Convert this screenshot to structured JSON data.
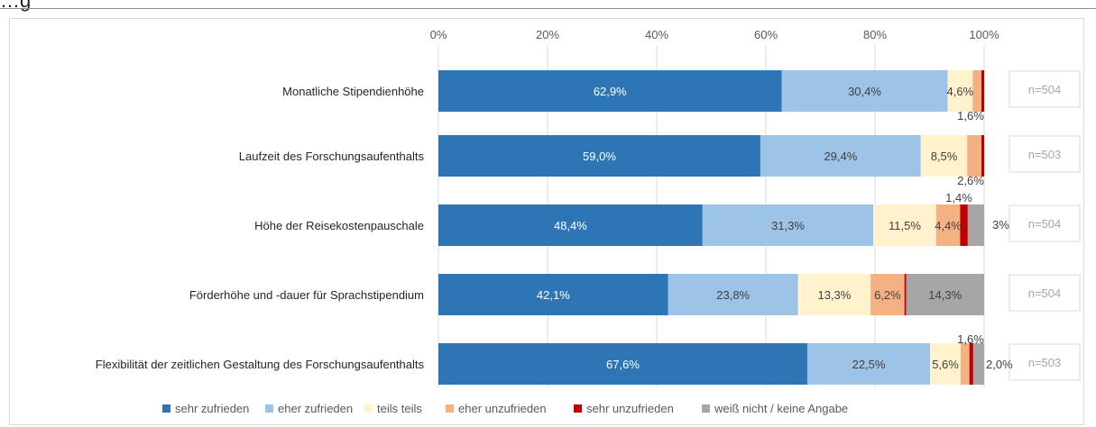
{
  "page_title": "…g",
  "chart_data": {
    "type": "bar",
    "orientation": "horizontal",
    "stacked": true,
    "title": "",
    "xlabel": "",
    "ylabel": "",
    "xlim": [
      0,
      100
    ],
    "x_ticks": [
      "0%",
      "20%",
      "40%",
      "60%",
      "80%",
      "100%"
    ],
    "x_tick_values": [
      0,
      20,
      40,
      60,
      80,
      100
    ],
    "grid": true,
    "legend_position": "bottom",
    "categories": [
      "Monatliche Stipendienhöhe",
      "Laufzeit des Forschungsaufenthalts",
      "Höhe der Reisekostenpauschale",
      "Förderhöhe und -dauer für Sprachstipendium",
      "Flexibilität der zeitlichen Gestaltung des Forschungsaufenthalts"
    ],
    "n_labels": [
      "n=504",
      "n=503",
      "n=504",
      "n=504",
      "n=503"
    ],
    "series": [
      {
        "name": "sehr zufrieden",
        "color": "#2e75b6",
        "label_color": "#ffffff",
        "values": [
          62.9,
          59.0,
          48.4,
          42.1,
          67.6
        ],
        "labels": [
          "62,9%",
          "59,0%",
          "48,4%",
          "42,1%",
          "67,6%"
        ]
      },
      {
        "name": "eher zufrieden",
        "color": "#9dc3e6",
        "label_color": "#404040",
        "values": [
          30.4,
          29.4,
          31.3,
          23.8,
          22.5
        ],
        "labels": [
          "30,4%",
          "29,4%",
          "31,3%",
          "23,8%",
          "22,5%"
        ]
      },
      {
        "name": "teils teils",
        "color": "#fff2cc",
        "label_color": "#404040",
        "values": [
          4.6,
          8.5,
          11.5,
          13.3,
          5.6
        ],
        "labels": [
          "4,6%",
          "8,5%",
          "11,5%",
          "13,3%",
          "5,6%"
        ]
      },
      {
        "name": "eher unzufrieden",
        "color": "#f4b183",
        "label_color": "#404040",
        "values": [
          1.6,
          2.6,
          4.4,
          6.2,
          1.6
        ],
        "labels": [
          "1,6%",
          "2,6%",
          "4,4%",
          "6,2%",
          "1,6%"
        ]
      },
      {
        "name": "sehr unzufrieden",
        "color": "#c00000",
        "label_color": "#404040",
        "values": [
          0.5,
          0.5,
          1.4,
          0.3,
          0.7
        ],
        "labels": [
          "",
          "",
          "1,4%",
          "",
          ""
        ]
      },
      {
        "name": "weiß nicht / keine Angabe",
        "color": "#a6a6a6",
        "label_color": "#404040",
        "values": [
          0,
          0,
          3.0,
          14.3,
          2.0
        ],
        "labels": [
          "",
          "",
          "3%",
          "14,3%",
          "2,0%"
        ]
      }
    ]
  }
}
